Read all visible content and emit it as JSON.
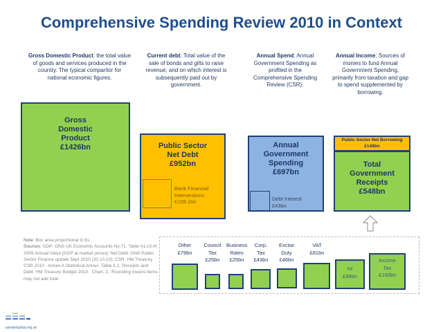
{
  "title": "Comprehensive Spending Review 2010 in Context",
  "descriptions": {
    "gdp": {
      "term": "Gross Domestic Product",
      "text": ": the total value of goods and services produced in the country.  The typical comparitor for national economic figures."
    },
    "debt": {
      "term": "Current debt",
      "text": ":  Total value of the sale of bonds and gilts to raise revenue, and on which interest is subsequently paid out by government."
    },
    "spend": {
      "term": "Annual Spend",
      "text": ": Annual Government Spending as profiled in the Comprehensive Spending Review (CSR)."
    },
    "income": {
      "term": "Annual Income",
      "text": ": Sources of monies to fund Annual Government Spending, primarily from taxation and gap to spend supplemented by borrowing."
    }
  },
  "boxes": {
    "gdp": {
      "label": "Gross Domestic Product",
      "value": "£1426bn"
    },
    "debt": {
      "label": "Public Sector Net Debt",
      "value": "£952bn",
      "inner_label": "Bank Financial Interventions",
      "inner_value": "£109.1bn"
    },
    "spend": {
      "label": "Annual Government Spending",
      "value": "£697bn",
      "inner_label": "Debt Interest",
      "inner_value": "£43bn"
    },
    "borrowing": {
      "label": "Public Sector Net Borrowing",
      "value": "£148bn"
    },
    "receipts": {
      "label": "Total Government Receipts",
      "value": "£548bn"
    }
  },
  "taxes": [
    {
      "label": "Other",
      "value": "£79bn"
    },
    {
      "label": "Council Tax",
      "value": "£25bn"
    },
    {
      "label": "Business Rates",
      "value": "£25bn"
    },
    {
      "label": "Corp. Tax",
      "value": "£43bn"
    },
    {
      "label": "Excise Duty",
      "value": "£46bn"
    },
    {
      "label": "VAT",
      "value": "£81bn"
    },
    {
      "label": "NI",
      "value": "£99bn"
    },
    {
      "label": "Income Tax",
      "value": "£150bn"
    }
  ],
  "note": {
    "label": "Note:",
    "text": " Box area proportional to  £s",
    "sources_label": "Sources:",
    "sources": " GDP: ONS UK Economic Accounts No.71. Table A1.c3.r6  2009 Annual Value [GDP at market prices]; Net Debt: ONS Public Sector Finance update Sept 2010 (20.10.10); CSR: HM Treasury CSR 2010 . Annex A Statistical Annex. Table A.1; Receipts and Debt: HM Treasury Budget 2010 . Chart. 2..  Rounding means items may not add total."
  },
  "logo": "speakingdata.org.uk",
  "colors": {
    "green": "#92d050",
    "orange": "#ffc000",
    "blue": "#8db3e2",
    "border": "#1f3f7a"
  }
}
